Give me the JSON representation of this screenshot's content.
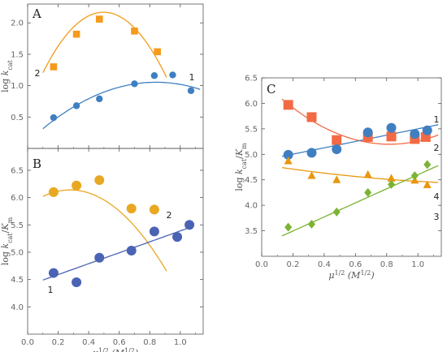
{
  "chart_data": [
    {
      "type": "scatter",
      "panel_label": "A",
      "xlim": [
        0,
        1.15
      ],
      "ylim": [
        0,
        2.3
      ],
      "xticks": [
        0.0,
        0.2,
        0.4,
        0.6,
        0.8,
        1.0
      ],
      "xtick_labels": [
        "",
        "",
        "",
        "",
        "",
        ""
      ],
      "yticks": [
        0.5,
        1.0,
        1.5,
        2.0
      ],
      "ytick_labels": [
        "0.5",
        "1.0",
        "1.5",
        "2.0"
      ],
      "xlabel": "",
      "ylabel": "log k_cat",
      "series": [
        {
          "name": "2",
          "marker": "square",
          "color": "#f59a1b",
          "x": [
            0.17,
            0.32,
            0.47,
            0.7,
            0.85
          ],
          "y": [
            1.3,
            1.82,
            2.06,
            1.87,
            1.54
          ],
          "fit": {
            "x_range": [
              0.1,
              0.91
            ],
            "coef": [
              0.66,
              6.07,
              -6.1
            ]
          }
        },
        {
          "name": "1",
          "marker": "circle",
          "color": "#3f7fc1",
          "x": [
            0.17,
            0.32,
            0.47,
            0.7,
            0.83,
            0.95,
            1.07
          ],
          "y": [
            0.49,
            0.68,
            0.79,
            1.03,
            1.16,
            1.17,
            0.92
          ],
          "fit": {
            "x_range": [
              0.1,
              1.13
            ],
            "coef": [
              0.1,
              2.27,
              -1.35
            ]
          }
        }
      ]
    },
    {
      "type": "scatter",
      "panel_label": "B",
      "xlim": [
        0,
        1.15
      ],
      "ylim": [
        3.5,
        6.9
      ],
      "xticks": [
        0.0,
        0.2,
        0.4,
        0.6,
        0.8,
        1.0
      ],
      "xtick_labels": [
        "0.0",
        "0.2",
        "0.4",
        "0.6",
        "0.8",
        "1.0"
      ],
      "yticks": [
        4.0,
        4.5,
        5.0,
        5.5,
        6.0,
        6.5
      ],
      "ytick_labels": [
        "4.0",
        "4.5",
        "5.0",
        "5.5",
        "6.0",
        "6.5"
      ],
      "xlabel": "μ^1/2 (M^1/2)",
      "ylabel": "log k_cat/K_m",
      "series": [
        {
          "name": "2",
          "marker": "circle",
          "color": "#e8a822",
          "x": [
            0.17,
            0.32,
            0.47,
            0.68,
            0.83
          ],
          "y": [
            6.1,
            6.22,
            6.32,
            5.8,
            5.78
          ],
          "fit": {
            "x_range": [
              0.1,
              0.91
            ],
            "coef": [
              5.85,
              2.08,
              -3.73
            ]
          }
        },
        {
          "name": "1",
          "marker": "circle",
          "color": "#4a63b4",
          "x": [
            0.17,
            0.32,
            0.47,
            0.68,
            0.83,
            0.98,
            1.06
          ],
          "y": [
            4.62,
            4.45,
            4.9,
            5.03,
            5.38,
            5.28,
            5.5
          ],
          "fit": {
            "x_range": [
              0.1,
              1.07
            ],
            "coef": [
              4.39,
              1.0,
              0.0
            ]
          }
        }
      ]
    },
    {
      "type": "scatter",
      "panel_label": "C",
      "xlim": [
        0,
        1.15
      ],
      "ylim": [
        3.0,
        6.5
      ],
      "xticks": [
        0.0,
        0.2,
        0.4,
        0.6,
        0.8,
        1.0
      ],
      "xtick_labels": [
        "0.0",
        "0.2",
        "0.4",
        "0.6",
        "0.8",
        "1.0"
      ],
      "yticks": [
        3.5,
        4.0,
        4.5,
        5.0,
        5.5,
        6.0,
        6.5
      ],
      "ytick_labels": [
        "3.5",
        "4.0",
        "4.5",
        "5.0",
        "5.5",
        "6.0",
        "6.5"
      ],
      "xlabel": "μ^1/2 (M^1/2)",
      "ylabel": "log k_cat/K_m",
      "series": [
        {
          "name": "2",
          "marker": "square",
          "color": "#f26a45",
          "x": [
            0.17,
            0.32,
            0.48,
            0.68,
            0.83,
            0.98,
            1.05
          ],
          "y": [
            5.97,
            5.73,
            5.28,
            5.34,
            5.35,
            5.3,
            5.34
          ],
          "fit": {
            "x_range": [
              0.13,
              1.13
            ],
            "coef": [
              6.45,
              -3.06,
              1.87
            ]
          }
        },
        {
          "name": "1",
          "marker": "circle",
          "color": "#3f7fc1",
          "x": [
            0.17,
            0.32,
            0.48,
            0.68,
            0.83,
            0.98,
            1.06
          ],
          "y": [
            4.99,
            5.03,
            5.1,
            5.43,
            5.52,
            5.4,
            5.47
          ],
          "fit": {
            "x_range": [
              0.13,
              1.13
            ],
            "coef": [
              4.88,
              0.62,
              0.0
            ]
          }
        },
        {
          "name": "3",
          "marker": "triangle",
          "color": "#e8970f",
          "x": [
            0.17,
            0.32,
            0.48,
            0.68,
            0.83,
            0.98,
            1.06
          ],
          "y": [
            4.87,
            4.58,
            4.5,
            4.6,
            4.53,
            4.49,
            4.4
          ],
          "fit": {
            "x_range": [
              0.13,
              1.13
            ],
            "coef": [
              4.8,
              -0.48,
              0.15
            ]
          }
        },
        {
          "name": "4",
          "marker": "diamond",
          "color": "#7bb332",
          "x": [
            0.17,
            0.32,
            0.48,
            0.68,
            0.83,
            0.98,
            1.06
          ],
          "y": [
            3.57,
            3.63,
            3.87,
            4.25,
            4.41,
            4.58,
            4.8
          ],
          "fit": {
            "x_range": [
              0.13,
              1.13
            ],
            "coef": [
              3.22,
              1.38,
              0.0
            ]
          }
        }
      ]
    }
  ]
}
